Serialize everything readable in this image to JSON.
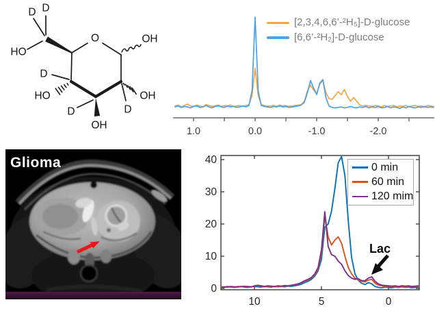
{
  "figure": {
    "background": "#ffffff"
  },
  "molecule": {
    "name": "deuterium-labeled D-glucose structure",
    "labels": {
      "o": "O",
      "oh": "OH",
      "ho": "HO",
      "d": "D"
    }
  },
  "mri": {
    "label": "Glioma",
    "annotation": "red arrow pointing to glioma",
    "strip_color": "#3a1134"
  },
  "chart_data": [
    {
      "id": "deuterium-nmr-spectra",
      "type": "line",
      "title": "",
      "xlabel": "",
      "ylabel": "",
      "grid": false,
      "legend_position": "top-right",
      "x_axis": {
        "min": 1.33,
        "max": -2.91,
        "reversed": true,
        "ticks": [
          1.0,
          0.5,
          0.0,
          -0.5,
          -1.0,
          -1.5,
          -2.0,
          -2.5
        ],
        "tick_labels": [
          "1.0",
          "",
          "0.0",
          "",
          "-1.0",
          "",
          "-2.0",
          ""
        ]
      },
      "y_axis": {
        "min": 0,
        "max": 107,
        "ticks": []
      },
      "series": [
        {
          "name": "[2,3,4,6,6’-²H₅]-D-glucose",
          "color": "#F9A43C",
          "x_start": 1.3,
          "x_step": -0.05,
          "values": [
            6,
            7,
            5,
            6.5,
            8,
            6,
            5.5,
            7,
            6,
            5,
            7.5,
            6.5,
            5.5,
            6,
            7,
            5.5,
            6.5,
            6,
            7,
            5.5,
            6,
            6.5,
            5.5,
            6.5,
            7.5,
            17,
            46,
            17,
            7.5,
            6.5,
            5.5,
            6,
            6.5,
            5.5,
            7,
            6,
            6.5,
            5.5,
            6,
            6.5,
            7,
            7.5,
            11,
            22,
            28,
            23,
            19,
            29,
            33,
            20,
            14,
            13,
            17,
            21,
            18,
            23.5,
            16,
            11,
            15,
            11,
            7,
            6,
            6.5,
            6,
            5.5,
            6.5,
            6,
            5,
            6.5,
            5.5,
            6,
            6.5,
            5,
            6,
            5.5,
            6.5,
            5,
            6,
            6.5,
            5.5,
            6,
            5,
            6.5,
            6,
            5.5
          ]
        },
        {
          "name": "[6,6’-²H₂]-D-glucose",
          "color": "#4AA1EC",
          "x_start": 1.3,
          "x_step": -0.05,
          "values": [
            5,
            6,
            4.5,
            5.5,
            5,
            4,
            5.5,
            6,
            4.5,
            5,
            6.5,
            5,
            4,
            5.5,
            6,
            5,
            4.5,
            6,
            5,
            5.5,
            4.5,
            5,
            6,
            5,
            6.5,
            22,
            100,
            22,
            6.5,
            5.5,
            5,
            4.5,
            5.5,
            5,
            6,
            5,
            5.5,
            4.5,
            5,
            5.5,
            6,
            7,
            10,
            20,
            33,
            25,
            18,
            30,
            34,
            15,
            6,
            4.5,
            4,
            4.5,
            5,
            4,
            4.5,
            5.5,
            4.5,
            4,
            5,
            4.5,
            5.5,
            4,
            5,
            4.5,
            5.5,
            4,
            4.5,
            5.5,
            4,
            5,
            4.5,
            3.5,
            5,
            4,
            5.5,
            4.5,
            4,
            5,
            4.5,
            5.5,
            4.5,
            5,
            4.5
          ]
        }
      ]
    },
    {
      "id": "metabolite-time-course",
      "type": "line",
      "title": "",
      "xlabel": "",
      "ylabel": "",
      "grid": false,
      "box": true,
      "legend_position": "top-right",
      "x_axis": {
        "min": 12.5,
        "max": -2.3,
        "reversed": true,
        "ticks": [
          10,
          5,
          0
        ],
        "tick_labels": [
          "10",
          "5",
          "0"
        ]
      },
      "y_axis": {
        "min": -0.5,
        "max": 41.7,
        "ticks": [
          0,
          10,
          20,
          30,
          40
        ],
        "tick_labels": [
          "0",
          "10",
          "20",
          "30",
          "40"
        ]
      },
      "annotations": [
        {
          "text": "Lac",
          "x": 1.3,
          "y": 6
        }
      ],
      "series": [
        {
          "name": "0 min",
          "color": "#0072BD",
          "x_start": 12.5,
          "x_step": -0.25,
          "values": [
            0.4,
            0.3,
            0.5,
            0.4,
            0.3,
            0.5,
            0.6,
            0.4,
            0.3,
            0.5,
            0.6,
            0.5,
            0.4,
            0.6,
            0.5,
            0.4,
            0.6,
            0.5,
            0.6,
            0.5,
            0.7,
            0.6,
            0.8,
            1.0,
            1.3,
            1.8,
            2.2,
            2.8,
            3.8,
            5.5,
            9.0,
            19.0,
            20.0,
            24.0,
            31.0,
            39.0,
            41.0,
            35.0,
            21.0,
            9.5,
            4.5,
            2.5,
            1.6,
            1.2,
            1.8,
            1.4,
            0.6,
            0.3,
            0.2,
            0.4,
            0.3,
            0.2,
            0.4,
            0.3,
            0.5,
            0.3,
            0.4,
            0.2,
            0.3,
            0.4,
            0.3
          ]
        },
        {
          "name": "60 min",
          "color": "#D95319",
          "x_start": 12.5,
          "x_step": -0.25,
          "values": [
            0.5,
            0.4,
            0.6,
            0.5,
            0.4,
            0.6,
            0.5,
            0.7,
            0.5,
            0.4,
            0.8,
            1.0,
            0.7,
            0.5,
            0.7,
            0.6,
            0.5,
            0.7,
            0.6,
            0.8,
            0.7,
            0.9,
            1.1,
            1.3,
            1.7,
            2.3,
            2.6,
            3.2,
            4.2,
            6.0,
            11.0,
            22.5,
            16.0,
            13.5,
            15.0,
            16.0,
            14.0,
            10.0,
            6.5,
            4.5,
            3.2,
            2.6,
            2.2,
            2.0,
            2.6,
            2.8,
            1.6,
            1.0,
            0.8,
            0.6,
            0.7,
            0.5,
            0.6,
            0.4,
            0.6,
            0.5,
            0.7,
            0.5,
            0.6,
            0.5,
            0.6
          ]
        },
        {
          "name": "120 mim",
          "color": "#7E2F8E",
          "x_start": 12.5,
          "x_step": -0.25,
          "values": [
            0.4,
            0.5,
            0.4,
            0.6,
            0.5,
            0.4,
            0.6,
            0.5,
            0.6,
            0.5,
            0.7,
            0.9,
            0.8,
            0.6,
            0.8,
            0.7,
            0.6,
            0.8,
            0.7,
            0.9,
            0.8,
            1.0,
            1.2,
            1.4,
            1.8,
            2.4,
            2.8,
            3.4,
            4.5,
            6.5,
            12.0,
            23.8,
            13.0,
            10.5,
            10.0,
            8.5,
            7.5,
            5.5,
            4.0,
            3.2,
            2.8,
            3.0,
            2.4,
            2.4,
            3.2,
            3.6,
            2.2,
            1.4,
            1.0,
            0.9,
            0.8,
            0.7,
            0.8,
            0.6,
            0.8,
            0.7,
            0.8,
            0.6,
            0.7,
            0.8,
            0.7
          ]
        }
      ]
    }
  ]
}
